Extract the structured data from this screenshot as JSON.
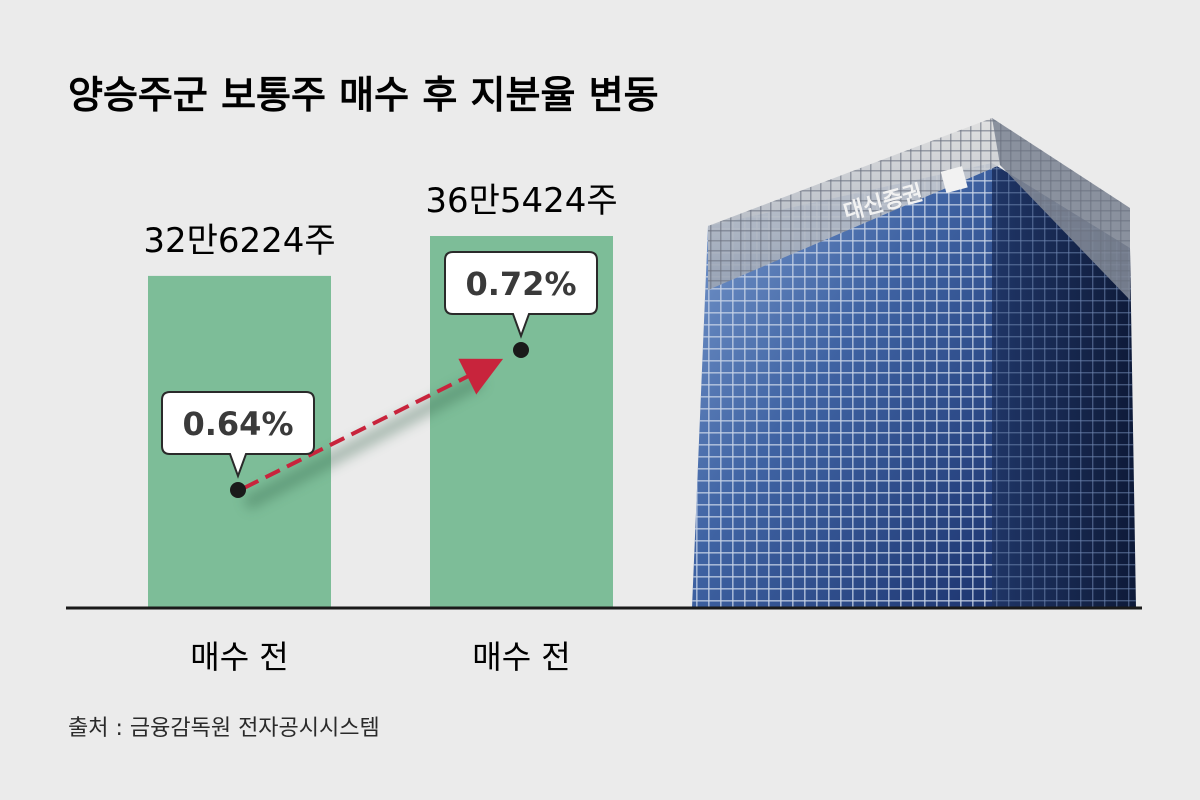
{
  "title": "양승주군 보통주 매수 후 지분율 변동",
  "source": "출처 : 금융감독원 전자공시시스템",
  "building_sign": "대신증권",
  "colors": {
    "background": "#ebebeb",
    "bar": "#7dbd98",
    "arrow": "#c8243c",
    "axis": "#1a1a1a",
    "building_dark": "#1b2f5e",
    "building_light": "#5b7fb8"
  },
  "chart_data": {
    "type": "bar",
    "categories": [
      "매수 전",
      "매수 전"
    ],
    "values": [
      326224,
      365424
    ],
    "value_labels": [
      "32만6224주",
      "36만5424주"
    ],
    "ownership_pct": [
      0.64,
      0.72
    ],
    "ownership_labels": [
      "0.64%",
      "0.72%"
    ],
    "ylim": [
      0,
      365424
    ],
    "unit": "주",
    "grid": false,
    "legend": "none",
    "xlabel": "",
    "ylabel": ""
  }
}
